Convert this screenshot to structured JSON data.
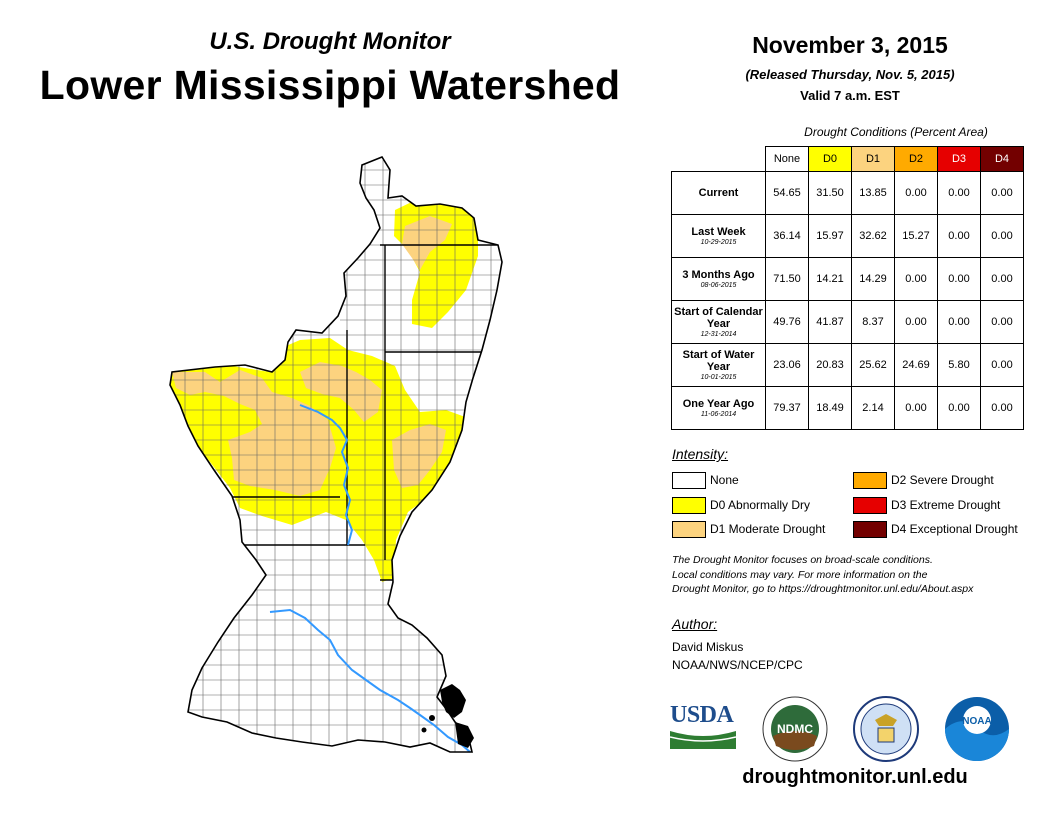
{
  "header": {
    "subtitle": "U.S. Drought Monitor",
    "title": "Lower Mississippi Watershed",
    "date": "November 3, 2015",
    "released": "(Released Thursday, Nov. 5, 2015)",
    "valid": "Valid 7 a.m. EST"
  },
  "table": {
    "caption": "Drought Conditions (Percent Area)",
    "columns": [
      "None",
      "D0",
      "D1",
      "D2",
      "D3",
      "D4"
    ],
    "rows": [
      {
        "label": "Current",
        "date": "",
        "values": [
          "54.65",
          "31.50",
          "13.85",
          "0.00",
          "0.00",
          "0.00"
        ]
      },
      {
        "label": "Last Week",
        "date": "10-29-2015",
        "values": [
          "36.14",
          "15.97",
          "32.62",
          "15.27",
          "0.00",
          "0.00"
        ]
      },
      {
        "label": "3 Months Ago",
        "date": "08-06-2015",
        "values": [
          "71.50",
          "14.21",
          "14.29",
          "0.00",
          "0.00",
          "0.00"
        ]
      },
      {
        "label": "Start of Calendar Year",
        "date": "12-31-2014",
        "values": [
          "49.76",
          "41.87",
          "8.37",
          "0.00",
          "0.00",
          "0.00"
        ]
      },
      {
        "label": "Start of Water Year",
        "date": "10-01-2015",
        "values": [
          "23.06",
          "20.83",
          "25.62",
          "24.69",
          "5.80",
          "0.00"
        ]
      },
      {
        "label": "One Year Ago",
        "date": "11-06-2014",
        "values": [
          "79.37",
          "18.49",
          "2.14",
          "0.00",
          "0.00",
          "0.00"
        ]
      }
    ]
  },
  "legend": {
    "title": "Intensity:",
    "items": [
      {
        "label": "None",
        "color": "#ffffff"
      },
      {
        "label": "D0 Abnormally Dry",
        "color": "#ffff00"
      },
      {
        "label": "D1 Moderate Drought",
        "color": "#fcd37f"
      },
      {
        "label": "D2 Severe Drought",
        "color": "#ffaa00"
      },
      {
        "label": "D3 Extreme Drought",
        "color": "#e60000"
      },
      {
        "label": "D4 Exceptional Drought",
        "color": "#730000"
      }
    ]
  },
  "note": {
    "line1": "The Drought Monitor focuses on broad-scale conditions.",
    "line2": "Local conditions may vary. For more information on the",
    "line3": "Drought Monitor, go to https://droughtmonitor.unl.edu/About.aspx"
  },
  "author": {
    "heading": "Author:",
    "name": "David Miskus",
    "org": "NOAA/NWS/NCEP/CPC"
  },
  "logos": {
    "usda": "USDA",
    "ndmc": "NDMC",
    "noaa": "NOAA"
  },
  "footer": {
    "url": "droughtmonitor.unl.edu"
  },
  "colors": {
    "none": "#ffffff",
    "d0": "#ffff00",
    "d1": "#fcd37f",
    "d2": "#ffaa00",
    "d3": "#e60000",
    "d4": "#730000",
    "river": "#3399ff"
  }
}
